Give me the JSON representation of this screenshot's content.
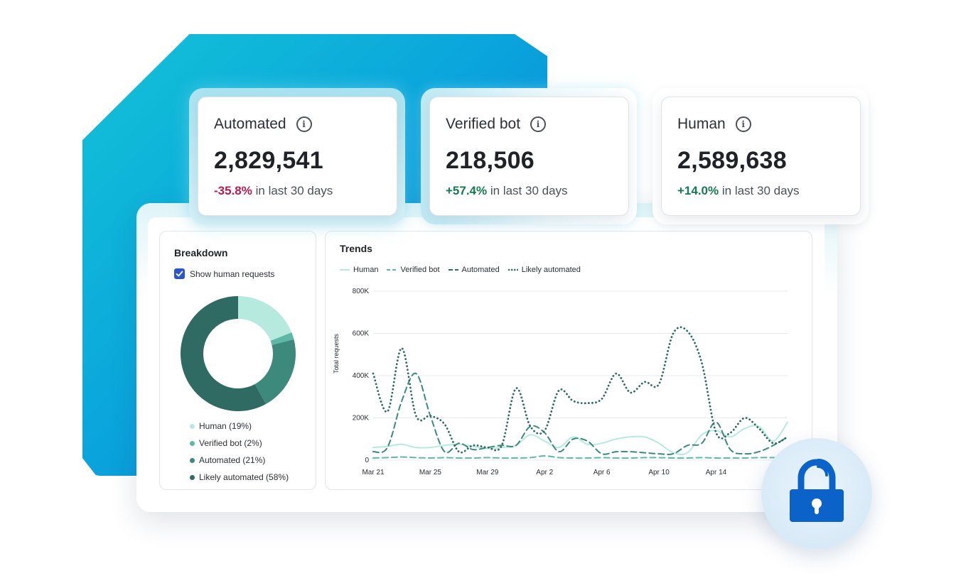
{
  "cards": [
    {
      "label": "Automated",
      "value": "2,829,541",
      "delta": "-35.8%",
      "delta_suffix": "in last 30 days",
      "trend": "negative"
    },
    {
      "label": "Verified bot",
      "value": "218,506",
      "delta": "+57.4%",
      "delta_suffix": "in last 30 days",
      "trend": "positive"
    },
    {
      "label": "Human",
      "value": "2,589,638",
      "delta": "+14.0%",
      "delta_suffix": "in last 30 days",
      "trend": "positive"
    }
  ],
  "breakdown": {
    "title": "Breakdown",
    "checkbox_label": "Show human requests",
    "checkbox_checked": true,
    "legend": [
      {
        "label": "Human (19%)",
        "color": "#b7eadf"
      },
      {
        "label": "Verified bot (2%)",
        "color": "#5fb8a6"
      },
      {
        "label": "Automated (21%)",
        "color": "#3d8a7c"
      },
      {
        "label": "Likely automated (58%)",
        "color": "#2f6b62"
      }
    ]
  },
  "trends": {
    "title": "Trends",
    "legend": [
      "Human",
      "Verified bot",
      "Automated",
      "Likely automated"
    ],
    "ylabel": "Total requests"
  },
  "chart_data": [
    {
      "type": "pie",
      "title": "Breakdown",
      "categories": [
        "Human",
        "Verified bot",
        "Automated",
        "Likely automated"
      ],
      "values": [
        19,
        2,
        21,
        58
      ],
      "colors": [
        "#b7eadf",
        "#5fb8a6",
        "#3d8a7c",
        "#2f6b62"
      ]
    },
    {
      "type": "line",
      "title": "Trends",
      "ylabel": "Total requests",
      "ylim": [
        0,
        800000
      ],
      "yticks": [
        "0",
        "200K",
        "400K",
        "600K",
        "800K"
      ],
      "xticks": [
        "Mar 21",
        "Mar 25",
        "Mar 29",
        "Apr 2",
        "Apr 6",
        "Apr 10",
        "Apr 14"
      ],
      "x": [
        "Mar 21",
        "Mar 22",
        "Mar 23",
        "Mar 24",
        "Mar 25",
        "Mar 26",
        "Mar 27",
        "Mar 28",
        "Mar 29",
        "Mar 30",
        "Mar 31",
        "Apr 1",
        "Apr 2",
        "Apr 3",
        "Apr 4",
        "Apr 5",
        "Apr 6",
        "Apr 7",
        "Apr 8",
        "Apr 9",
        "Apr 10",
        "Apr 11",
        "Apr 12",
        "Apr 13",
        "Apr 14",
        "Apr 15",
        "Apr 16",
        "Apr 17",
        "Apr 18",
        "Apr 19"
      ],
      "series": [
        {
          "name": "Human",
          "color": "#b7eadf",
          "dash": "solid",
          "values": [
            60000,
            65000,
            75000,
            60000,
            60000,
            70000,
            75000,
            65000,
            55000,
            60000,
            70000,
            120000,
            90000,
            60000,
            110000,
            75000,
            80000,
            100000,
            110000,
            110000,
            80000,
            35000,
            35000,
            120000,
            140000,
            110000,
            150000,
            160000,
            90000,
            180000
          ]
        },
        {
          "name": "Verified bot",
          "color": "#5fb8a6",
          "dash": "dashed",
          "values": [
            10000,
            12000,
            15000,
            12000,
            10000,
            12000,
            10000,
            10000,
            12000,
            10000,
            10000,
            12000,
            20000,
            12000,
            10000,
            10000,
            12000,
            10000,
            10000,
            12000,
            12000,
            10000,
            10000,
            12000,
            10000,
            10000,
            10000,
            12000,
            12000,
            10000
          ]
        },
        {
          "name": "Automated",
          "color": "#3d8a7c",
          "dash": "dashed",
          "values": [
            40000,
            60000,
            280000,
            410000,
            210000,
            40000,
            80000,
            50000,
            60000,
            70000,
            70000,
            160000,
            130000,
            40000,
            100000,
            90000,
            30000,
            40000,
            40000,
            35000,
            30000,
            30000,
            70000,
            80000,
            180000,
            50000,
            30000,
            40000,
            70000,
            110000
          ]
        },
        {
          "name": "Likely automated",
          "color": "#2f6b62",
          "dash": "dotted",
          "values": [
            410000,
            230000,
            530000,
            210000,
            210000,
            170000,
            40000,
            70000,
            60000,
            70000,
            340000,
            160000,
            140000,
            330000,
            280000,
            270000,
            290000,
            410000,
            320000,
            370000,
            360000,
            600000,
            610000,
            460000,
            130000,
            130000,
            200000,
            150000,
            80000,
            110000
          ]
        }
      ]
    }
  ]
}
